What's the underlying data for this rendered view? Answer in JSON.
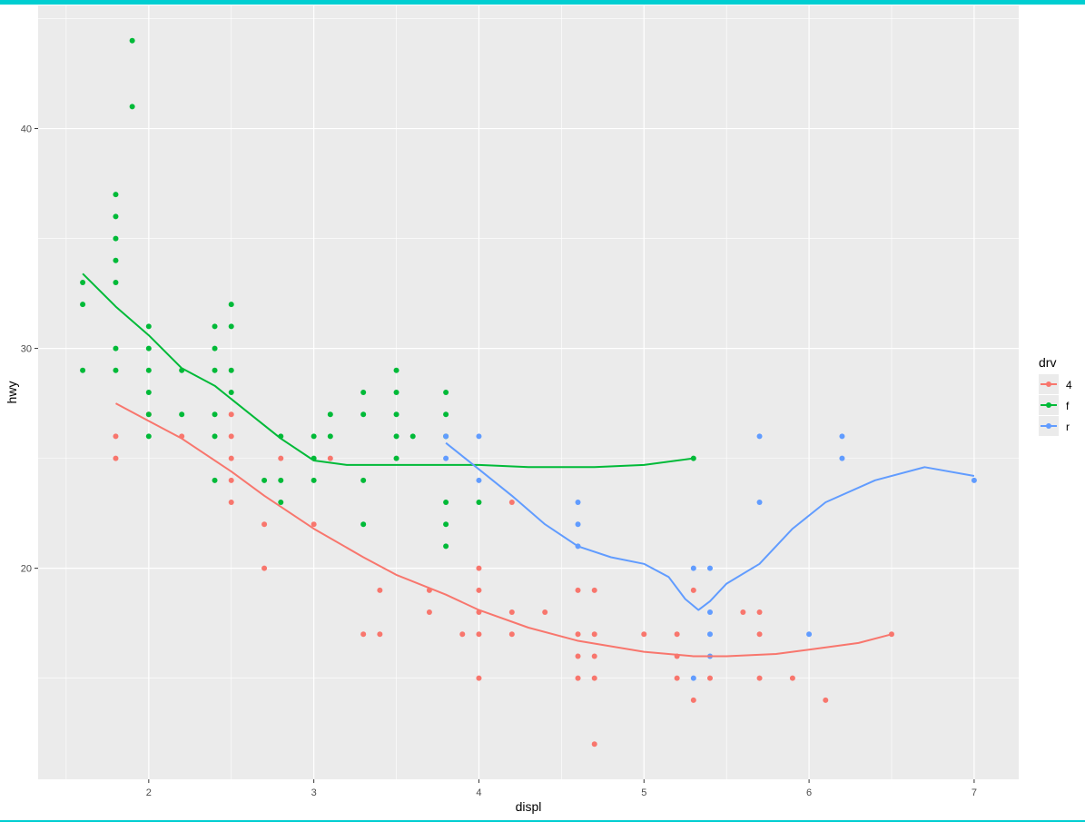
{
  "colors": {
    "panel_bg": "#EBEBEB",
    "grid_major": "#FFFFFF",
    "axis_text": "#4D4D4D",
    "axis_title": "#000000",
    "frame_accent": "#00CED1",
    "series_4": "#F8766D",
    "series_f": "#00BA38",
    "series_r": "#619CFF"
  },
  "chart_data": {
    "type": "scatter",
    "title": "",
    "xlabel": "displ",
    "ylabel": "hwy",
    "xlim": [
      1.33,
      7.27
    ],
    "ylim": [
      10.4,
      45.6
    ],
    "xticks": [
      2,
      3,
      4,
      5,
      6,
      7
    ],
    "yticks": [
      20,
      30,
      40
    ],
    "grid": true,
    "legend": {
      "title": "drv",
      "position": "right",
      "entries": [
        "4",
        "f",
        "r"
      ]
    },
    "series": [
      {
        "name": "4",
        "color": "#F8766D",
        "points": [
          [
            1.8,
            26
          ],
          [
            1.8,
            25
          ],
          [
            2.0,
            27
          ],
          [
            2.2,
            26
          ],
          [
            2.5,
            27
          ],
          [
            2.5,
            26
          ],
          [
            2.5,
            25
          ],
          [
            2.5,
            24
          ],
          [
            2.5,
            23
          ],
          [
            2.7,
            22
          ],
          [
            2.7,
            20
          ],
          [
            2.8,
            25
          ],
          [
            3.0,
            22
          ],
          [
            3.1,
            25
          ],
          [
            3.3,
            17
          ],
          [
            3.4,
            19
          ],
          [
            3.4,
            17
          ],
          [
            3.7,
            19
          ],
          [
            3.7,
            18
          ],
          [
            3.9,
            17
          ],
          [
            4.0,
            20
          ],
          [
            4.0,
            19
          ],
          [
            4.0,
            18
          ],
          [
            4.0,
            17
          ],
          [
            4.0,
            15
          ],
          [
            4.2,
            23
          ],
          [
            4.2,
            18
          ],
          [
            4.2,
            17
          ],
          [
            4.4,
            18
          ],
          [
            4.6,
            19
          ],
          [
            4.6,
            17
          ],
          [
            4.6,
            16
          ],
          [
            4.6,
            15
          ],
          [
            4.7,
            19
          ],
          [
            4.7,
            17
          ],
          [
            4.7,
            16
          ],
          [
            4.7,
            15
          ],
          [
            4.7,
            12
          ],
          [
            5.0,
            17
          ],
          [
            5.2,
            17
          ],
          [
            5.2,
            16
          ],
          [
            5.2,
            15
          ],
          [
            5.3,
            19
          ],
          [
            5.3,
            14
          ],
          [
            5.4,
            15
          ],
          [
            5.6,
            18
          ],
          [
            5.7,
            18
          ],
          [
            5.7,
            17
          ],
          [
            5.7,
            15
          ],
          [
            5.9,
            15
          ],
          [
            6.1,
            14
          ],
          [
            6.5,
            17
          ]
        ],
        "smooth": [
          [
            1.8,
            27.5
          ],
          [
            2.0,
            26.7
          ],
          [
            2.2,
            25.9
          ],
          [
            2.5,
            24.4
          ],
          [
            2.7,
            23.3
          ],
          [
            3.0,
            21.8
          ],
          [
            3.3,
            20.5
          ],
          [
            3.5,
            19.7
          ],
          [
            3.8,
            18.8
          ],
          [
            4.0,
            18.1
          ],
          [
            4.3,
            17.3
          ],
          [
            4.6,
            16.7
          ],
          [
            5.0,
            16.2
          ],
          [
            5.3,
            16.0
          ],
          [
            5.5,
            16.0
          ],
          [
            5.8,
            16.1
          ],
          [
            6.0,
            16.3
          ],
          [
            6.3,
            16.6
          ],
          [
            6.5,
            17.0
          ]
        ]
      },
      {
        "name": "f",
        "color": "#00BA38",
        "points": [
          [
            1.6,
            33
          ],
          [
            1.6,
            32
          ],
          [
            1.6,
            29
          ],
          [
            1.8,
            37
          ],
          [
            1.8,
            36
          ],
          [
            1.8,
            35
          ],
          [
            1.8,
            34
          ],
          [
            1.8,
            33
          ],
          [
            1.8,
            30
          ],
          [
            1.8,
            29
          ],
          [
            1.9,
            44
          ],
          [
            1.9,
            41
          ],
          [
            2.0,
            31
          ],
          [
            2.0,
            30
          ],
          [
            2.0,
            29
          ],
          [
            2.0,
            28
          ],
          [
            2.0,
            27
          ],
          [
            2.0,
            26
          ],
          [
            2.2,
            29
          ],
          [
            2.2,
            27
          ],
          [
            2.4,
            31
          ],
          [
            2.4,
            30
          ],
          [
            2.4,
            29
          ],
          [
            2.4,
            27
          ],
          [
            2.4,
            26
          ],
          [
            2.4,
            24
          ],
          [
            2.5,
            32
          ],
          [
            2.5,
            31
          ],
          [
            2.5,
            29
          ],
          [
            2.5,
            28
          ],
          [
            2.7,
            24
          ],
          [
            2.8,
            26
          ],
          [
            2.8,
            24
          ],
          [
            2.8,
            23
          ],
          [
            3.0,
            26
          ],
          [
            3.0,
            25
          ],
          [
            3.0,
            24
          ],
          [
            3.1,
            27
          ],
          [
            3.1,
            26
          ],
          [
            3.3,
            28
          ],
          [
            3.3,
            27
          ],
          [
            3.3,
            24
          ],
          [
            3.3,
            22
          ],
          [
            3.5,
            29
          ],
          [
            3.5,
            28
          ],
          [
            3.5,
            27
          ],
          [
            3.5,
            26
          ],
          [
            3.5,
            25
          ],
          [
            3.6,
            26
          ],
          [
            3.8,
            28
          ],
          [
            3.8,
            27
          ],
          [
            3.8,
            26
          ],
          [
            3.8,
            23
          ],
          [
            3.8,
            22
          ],
          [
            3.8,
            21
          ],
          [
            4.0,
            23
          ],
          [
            5.3,
            25
          ]
        ],
        "smooth": [
          [
            1.6,
            33.4
          ],
          [
            1.8,
            31.9
          ],
          [
            2.0,
            30.6
          ],
          [
            2.2,
            29.1
          ],
          [
            2.4,
            28.3
          ],
          [
            2.6,
            27.1
          ],
          [
            2.8,
            25.9
          ],
          [
            3.0,
            24.9
          ],
          [
            3.2,
            24.7
          ],
          [
            3.5,
            24.7
          ],
          [
            3.8,
            24.7
          ],
          [
            4.0,
            24.7
          ],
          [
            4.3,
            24.6
          ],
          [
            4.7,
            24.6
          ],
          [
            5.0,
            24.7
          ],
          [
            5.3,
            25.0
          ]
        ]
      },
      {
        "name": "r",
        "color": "#619CFF",
        "points": [
          [
            3.8,
            26
          ],
          [
            3.8,
            25
          ],
          [
            4.0,
            26
          ],
          [
            4.0,
            24
          ],
          [
            4.6,
            23
          ],
          [
            4.6,
            22
          ],
          [
            4.6,
            21
          ],
          [
            5.3,
            20
          ],
          [
            5.3,
            15
          ],
          [
            5.4,
            20
          ],
          [
            5.4,
            18
          ],
          [
            5.4,
            17
          ],
          [
            5.4,
            16
          ],
          [
            5.7,
            26
          ],
          [
            5.7,
            23
          ],
          [
            6.0,
            17
          ],
          [
            6.2,
            26
          ],
          [
            6.2,
            25
          ],
          [
            7.0,
            24
          ]
        ],
        "smooth": [
          [
            3.8,
            25.7
          ],
          [
            4.0,
            24.5
          ],
          [
            4.2,
            23.3
          ],
          [
            4.4,
            22.0
          ],
          [
            4.6,
            21.0
          ],
          [
            4.8,
            20.5
          ],
          [
            5.0,
            20.2
          ],
          [
            5.15,
            19.6
          ],
          [
            5.25,
            18.6
          ],
          [
            5.33,
            18.1
          ],
          [
            5.4,
            18.5
          ],
          [
            5.5,
            19.3
          ],
          [
            5.7,
            20.2
          ],
          [
            5.9,
            21.8
          ],
          [
            6.1,
            23.0
          ],
          [
            6.4,
            24.0
          ],
          [
            6.7,
            24.6
          ],
          [
            7.0,
            24.2
          ]
        ]
      }
    ]
  }
}
